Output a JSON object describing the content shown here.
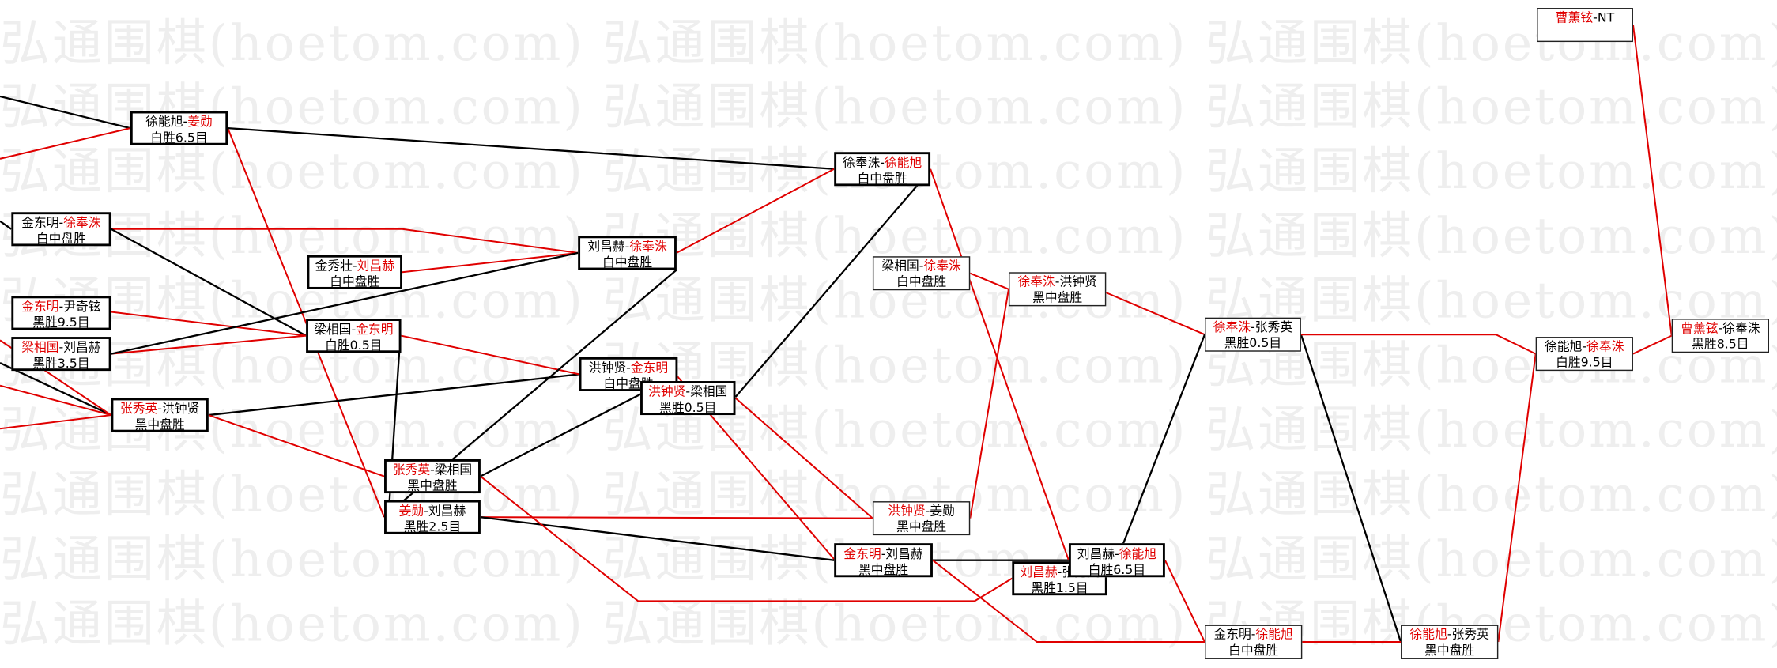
{
  "watermark": "弘通围棋(hoetom.com) 弘通围棋(hoetom.com) 弘通围棋(hoetom.com) 弘通围棋",
  "colors": {
    "winner": "#e00000",
    "loser": "#000000",
    "win_line": "#e00000",
    "loss_line": "#000000"
  },
  "nodes": [
    {
      "p1": "徐能旭",
      "p2": "姜勋",
      "winner": 2,
      "result": "白胜6.5目"
    },
    {
      "p1": "金东明",
      "p2": "徐奉洙",
      "winner": 2,
      "result": "白中盘胜"
    },
    {
      "p1": "金秀壮",
      "p2": "刘昌赫",
      "winner": 2,
      "result": "白中盘胜"
    },
    {
      "p1": "金东明",
      "p2": "尹奇铉",
      "winner": 1,
      "result": "黑胜9.5目"
    },
    {
      "p1": "梁相国",
      "p2": "刘昌赫",
      "winner": 1,
      "result": "黑胜3.5目"
    },
    {
      "p1": "梁相国",
      "p2": "金东明",
      "winner": 2,
      "result": "白胜0.5目"
    },
    {
      "p1": "张秀英",
      "p2": "洪钟贤",
      "winner": 1,
      "result": "黑中盘胜"
    },
    {
      "p1": "刘昌赫",
      "p2": "徐奉洙",
      "winner": 2,
      "result": "白中盘胜"
    },
    {
      "p1": "洪钟贤",
      "p2": "金东明",
      "winner": 2,
      "result": "白中盘胜"
    },
    {
      "p1": "洪钟贤",
      "p2": "梁相国",
      "winner": 1,
      "result": "黑胜0.5目"
    },
    {
      "p1": "张秀英",
      "p2": "梁相国",
      "winner": 1,
      "result": "黑中盘胜"
    },
    {
      "p1": "姜勋",
      "p2": "刘昌赫",
      "winner": 1,
      "result": "黑胜2.5目"
    },
    {
      "p1": "徐奉洙",
      "p2": "徐能旭",
      "winner": 2,
      "result": "白中盘胜"
    },
    {
      "p1": "梁相国",
      "p2": "徐奉洙",
      "winner": 2,
      "result": "白中盘胜"
    },
    {
      "p1": "徐奉洙",
      "p2": "洪钟贤",
      "winner": 1,
      "result": "黑中盘胜"
    },
    {
      "p1": "洪钟贤",
      "p2": "姜勋",
      "winner": 1,
      "result": "黑中盘胜"
    },
    {
      "p1": "金东明",
      "p2": "刘昌赫",
      "winner": 1,
      "result": "黑中盘胜"
    },
    {
      "p1": "刘昌赫",
      "p2": "张秀英",
      "winner": 1,
      "result": "黑胜1.5目"
    },
    {
      "p1": "刘昌赫",
      "p2": "徐能旭",
      "winner": 2,
      "result": "白胜6.5目"
    },
    {
      "p1": "徐奉洙",
      "p2": "张秀英",
      "winner": 1,
      "result": "黑胜0.5目"
    },
    {
      "p1": "金东明",
      "p2": "徐能旭",
      "winner": 2,
      "result": "白中盘胜"
    },
    {
      "p1": "徐能旭",
      "p2": "张秀英",
      "winner": 1,
      "result": "黑中盘胜"
    },
    {
      "p1": "徐能旭",
      "p2": "徐奉洙",
      "winner": 2,
      "result": "白胜9.5目"
    },
    {
      "p1": "曹薰铉",
      "p2": "徐奉洙",
      "winner": 1,
      "result": "黑胜8.5目"
    },
    {
      "p1": "曹薰铉",
      "p2": "NT",
      "winner": 1,
      "result": ""
    }
  ]
}
